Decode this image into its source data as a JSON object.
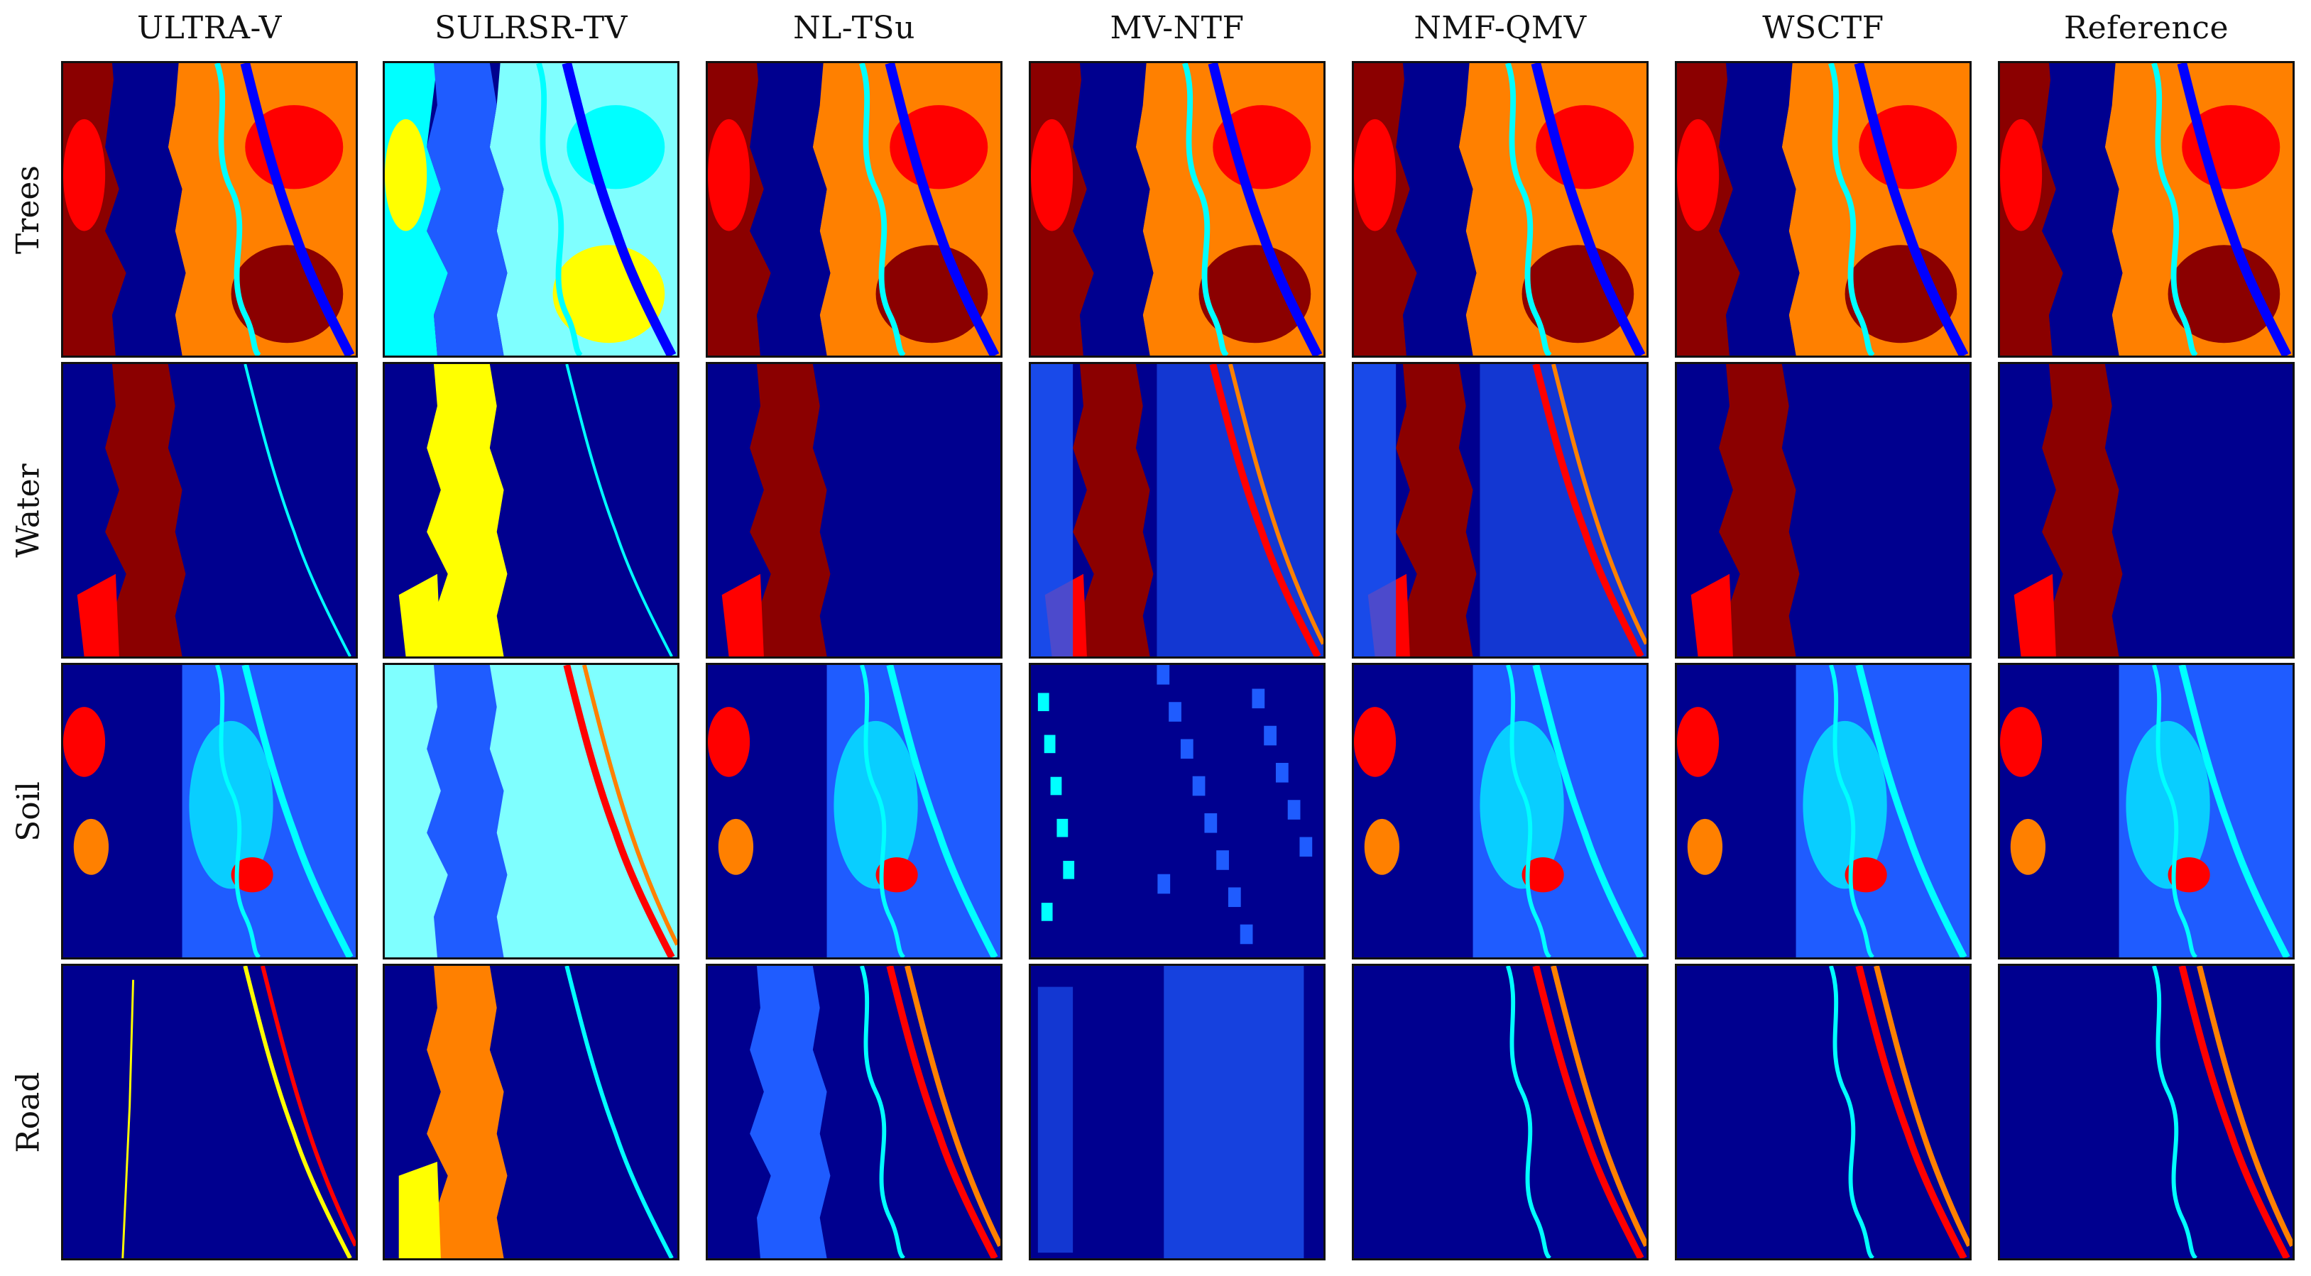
{
  "figure": {
    "methods": [
      "ULTRA-V",
      "SULRSR-TV",
      "NL-TSu",
      "MV-NTF",
      "NMF-QMV",
      "WSCTF",
      "Reference"
    ],
    "materials": [
      "Trees",
      "Water",
      "Soil",
      "Road"
    ],
    "colormap": "jet",
    "colors": {
      "dark_blue": "#00008f",
      "blue": "#0000ff",
      "mid_blue": "#1f5cff",
      "cyan": "#00ffff",
      "light_cyan": "#7fffff",
      "yellow": "#ffff00",
      "orange": "#ff8000",
      "red": "#ff0000",
      "dark_red": "#8b0000",
      "frame": "#111111",
      "background": "#ffffff"
    },
    "panel_images": "abundance maps"
  }
}
